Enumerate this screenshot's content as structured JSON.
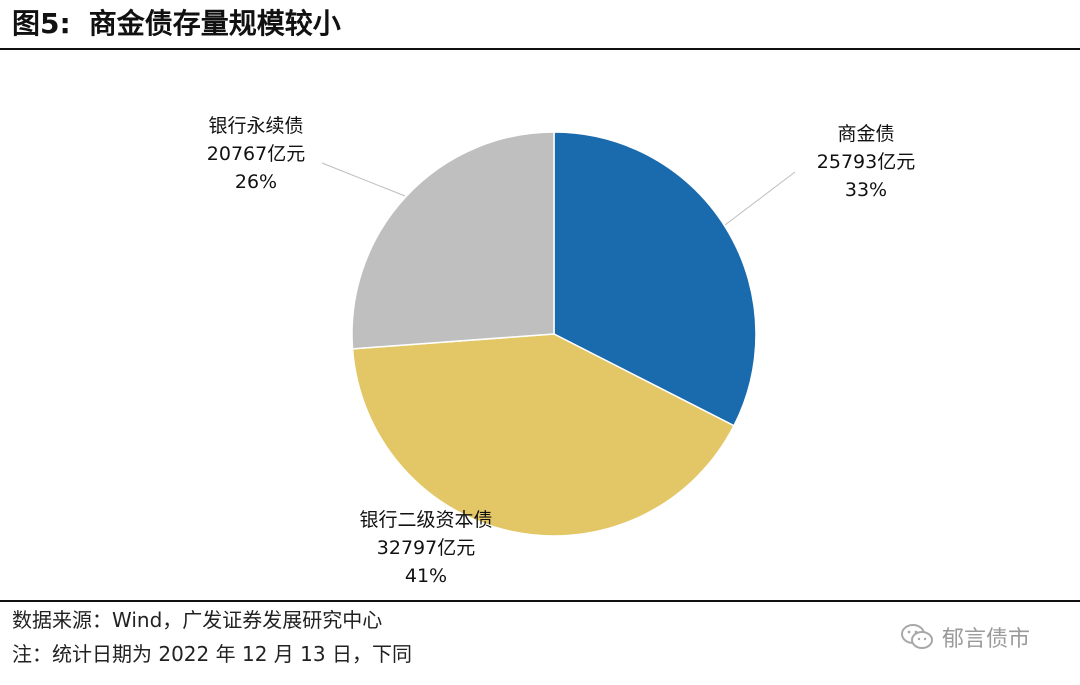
{
  "header": {
    "figure_number": "图5:",
    "title": "商金债存量规模较小"
  },
  "chart_data": {
    "type": "pie",
    "title": "商金债存量规模较小",
    "start_angle": "12 o'clock",
    "direction": "clockwise",
    "slices": [
      {
        "label": "商金债",
        "value": 25793,
        "value_label": "25793亿元",
        "percent_label": "33%",
        "color": "#1a6aae"
      },
      {
        "label": "银行二级资本债",
        "value": 32797,
        "value_label": "32797亿元",
        "percent_label": "41%",
        "color": "#e3c665"
      },
      {
        "label": "银行永续债",
        "value": 20767,
        "value_label": "20767亿元",
        "percent_label": "26%",
        "color": "#bfbfbf"
      }
    ]
  },
  "footer": {
    "source": "数据来源：Wind，广发证券发展研究中心",
    "note": "注：统计日期为 2022 年 12 月 13 日，下同"
  },
  "watermark": {
    "icon": "wechat-icon",
    "text": "郁言债市"
  }
}
